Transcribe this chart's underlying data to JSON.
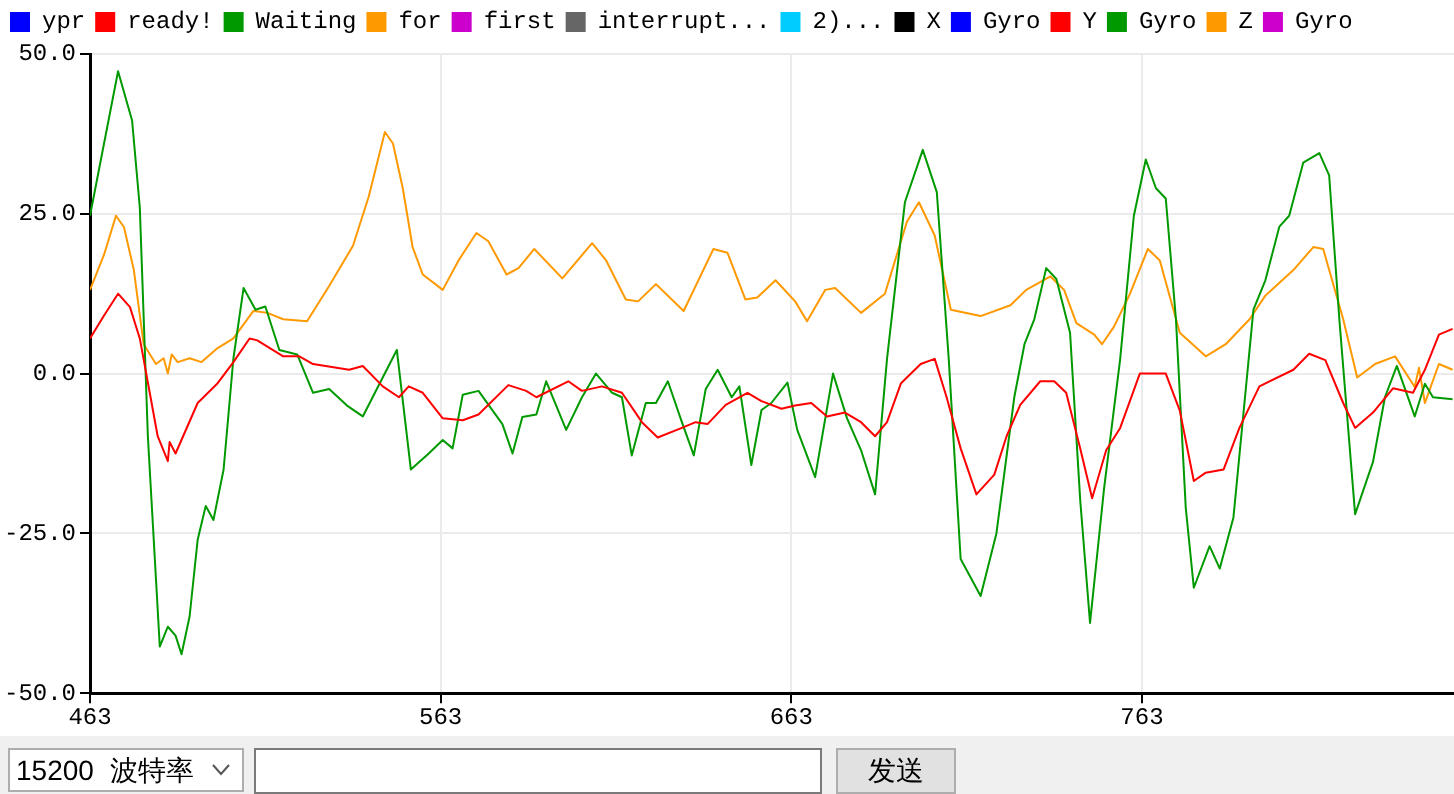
{
  "chart_data": {
    "type": "line",
    "xlim": [
      463,
      852
    ],
    "xticks": [
      463,
      563,
      663,
      763
    ],
    "ylim": [
      -50,
      50
    ],
    "yticks": [
      {
        "value": -50,
        "label": "-50.0"
      },
      {
        "value": -25,
        "label": "-25.0"
      },
      {
        "value": 0,
        "label": "0.0"
      },
      {
        "value": 25,
        "label": "25.0"
      },
      {
        "value": 50,
        "label": "50.0"
      }
    ],
    "grid": true,
    "legend": "top left",
    "marker": "none",
    "line_style": "solid",
    "annotations": [
      "15200",
      "波特率",
      "发送"
    ],
    "series": [
      {
        "name": "ypr",
        "color": "#0000ff"
      },
      {
        "name": "ready!",
        "color": "#ff0000",
        "x": [
          463,
          467,
          471,
          474.4,
          477.2,
          482.3,
          485.2,
          485.7,
          487.4,
          493.7,
          499.4,
          503.9,
          508.5,
          510.7,
          518.1,
          522.7,
          526.6,
          536.9,
          540.8,
          546.5,
          551.1,
          553.9,
          557.9,
          563.6,
          569.3,
          573.8,
          582.3,
          587.4,
          590.3,
          599.4,
          603.3,
          609,
          614.7,
          620.4,
          624.9,
          631.8,
          635.7,
          639.1,
          644.3,
          650.5,
          654.5,
          660.2,
          664.1,
          668.7,
          673.2,
          678.3,
          682.9,
          686.9,
          690.3,
          694.3,
          699.9,
          703.9,
          707.3,
          711.3,
          715.8,
          720.9,
          724.4,
          728.3,
          734,
          738,
          741.4,
          745.4,
          748.8,
          752.8,
          756.8,
          762.4,
          769.8,
          773.8,
          777.8,
          781.2,
          786.3,
          790.8,
          796.5,
          806.2,
          810.7,
          815.3,
          820.4,
          823.8,
          828.9,
          834.6,
          840.3,
          843.7,
          847.7,
          851.6
        ],
        "values": [
          5.5,
          9.1,
          12.5,
          10.4,
          5.5,
          -9.8,
          -13.7,
          -10.7,
          -12.5,
          -4.6,
          -1.5,
          1.8,
          5.5,
          5.2,
          2.7,
          2.7,
          1.5,
          0.6,
          1.2,
          -2,
          -3.7,
          -2,
          -3,
          -7,
          -7.3,
          -6.4,
          -1.8,
          -2.7,
          -3.7,
          -1.2,
          -2.7,
          -2,
          -3,
          -7.6,
          -10,
          -8.5,
          -7.6,
          -7.9,
          -4.9,
          -3,
          -4.3,
          -5.5,
          -5,
          -4.6,
          -6.7,
          -6.1,
          -7.6,
          -9.8,
          -7.6,
          -1.5,
          1.5,
          2.3,
          -3.7,
          -11.7,
          -18.9,
          -15.8,
          -9.8,
          -4.9,
          -1.2,
          -1.2,
          -3,
          -11.7,
          -19.5,
          -12,
          -8.5,
          0,
          0,
          -5.8,
          -16.8,
          -15.5,
          -15,
          -8.5,
          -2,
          0.6,
          3.1,
          2.1,
          -4.6,
          -8.5,
          -6.1,
          -2.3,
          -3,
          0.6,
          6.1,
          7
        ]
      },
      {
        "name": "Waiting",
        "color": "#009900",
        "x": [
          463,
          471,
          475,
          477.2,
          479.5,
          482.9,
          485.2,
          487.4,
          489.1,
          491.4,
          493.7,
          496,
          498.2,
          501.1,
          503.9,
          506.8,
          510.2,
          513,
          517,
          522.1,
          526.6,
          531.2,
          536.3,
          540.8,
          544.8,
          550.5,
          554.5,
          559.6,
          563.6,
          566.4,
          569.3,
          573.8,
          580.6,
          583.5,
          586.3,
          590.3,
          593.1,
          598.8,
          603.3,
          607.3,
          611.9,
          614.7,
          617.5,
          621.5,
          624.4,
          627.8,
          631.8,
          635.2,
          638.6,
          642,
          646,
          648.2,
          651.6,
          654.5,
          657.3,
          661.9,
          664.7,
          669.8,
          674.9,
          678.9,
          682.9,
          686.9,
          690.3,
          695.4,
          700.5,
          704.5,
          707.9,
          711.3,
          717,
          721.5,
          726.6,
          729.5,
          732.3,
          735.7,
          738.6,
          742.5,
          745.4,
          748.2,
          752.2,
          756.8,
          760.7,
          764.1,
          767,
          769.8,
          772.7,
          775.5,
          777.8,
          782.3,
          785.2,
          789.1,
          794.8,
          798.2,
          802.2,
          805,
          809,
          813.6,
          816.4,
          819.3,
          823.8,
          828.9,
          832.3,
          835.7,
          840.8,
          843.7,
          846,
          851.6
        ],
        "values": [
          24.7,
          47.3,
          39.6,
          26,
          -9.8,
          -42.7,
          -39.6,
          -41,
          -43.9,
          -38,
          -26,
          -20.7,
          -22.9,
          -15,
          2.4,
          13.4,
          10,
          10.5,
          3.7,
          3,
          -3,
          -2.4,
          -5,
          -6.7,
          -2.4,
          3.7,
          -15,
          -12.5,
          -10.4,
          -11.7,
          -3.3,
          -2.7,
          -7.9,
          -12.5,
          -6.8,
          -6.4,
          -1.2,
          -8.8,
          -3.7,
          0,
          -3,
          -3.7,
          -12.8,
          -4.6,
          -4.6,
          -1.2,
          -7.6,
          -12.8,
          -2.4,
          0.6,
          -3.7,
          -2,
          -14.3,
          -5.7,
          -4.6,
          -1.4,
          -8.8,
          -16.2,
          0,
          -7,
          -12,
          -18.9,
          2.3,
          26.8,
          35,
          28.4,
          2.3,
          -29,
          -34.8,
          -25,
          -3.7,
          4.6,
          8.5,
          16.5,
          14.8,
          6.4,
          -19.8,
          -39,
          -18,
          2.3,
          24.7,
          33.5,
          29,
          27.4,
          8.5,
          -21,
          -33.5,
          -27,
          -30.5,
          -22.5,
          10,
          14.6,
          23,
          24.7,
          33,
          34.5,
          31,
          8.5,
          -22,
          -13.8,
          -3.7,
          1.2,
          -6.7,
          -1.6,
          -3.7,
          -4
        ]
      },
      {
        "name": "for",
        "color": "#ff9900",
        "x": [
          463,
          467,
          470.4,
          472.7,
          475.5,
          478.3,
          481.8,
          484,
          485.2,
          486.3,
          488,
          491.4,
          494.8,
          499.4,
          503.9,
          509.6,
          513.6,
          518.1,
          524.9,
          531.2,
          538,
          542.5,
          547.1,
          549.4,
          552.2,
          555,
          557.9,
          563.6,
          568.1,
          573.2,
          576.6,
          581.8,
          585.2,
          589.7,
          597.7,
          606.2,
          610.2,
          615.8,
          619.3,
          624.4,
          632.3,
          640.8,
          644.8,
          649.9,
          653.3,
          658.5,
          664.1,
          667.5,
          672.7,
          675.5,
          682.9,
          689.7,
          696,
          699.4,
          703.9,
          708.5,
          717,
          725.5,
          730,
          736.9,
          740.8,
          744.3,
          749.4,
          751.6,
          755,
          759.6,
          764.7,
          768.1,
          773.8,
          781.2,
          786.9,
          793.7,
          798.2,
          806.2,
          811.9,
          814.7,
          820.4,
          824.4,
          829.5,
          835.2,
          840.8,
          842,
          843.7,
          847.7,
          851.6
        ],
        "values": [
          13.1,
          18.6,
          24.7,
          22.9,
          16.2,
          4.6,
          1.5,
          2.4,
          0,
          3,
          1.8,
          2.4,
          1.8,
          4,
          5.5,
          9.8,
          9.5,
          8.5,
          8.2,
          13.7,
          20,
          27.7,
          37.8,
          36,
          29,
          19.8,
          15.5,
          13.1,
          17.7,
          22,
          20.7,
          15.5,
          16.5,
          19.5,
          14.9,
          20.4,
          17.7,
          11.6,
          11.3,
          14,
          9.8,
          19.5,
          18.9,
          11.6,
          11.9,
          14.6,
          11.3,
          8.2,
          13.1,
          13.4,
          9.5,
          12.5,
          23.8,
          26.8,
          21.6,
          10,
          9,
          10.7,
          13.1,
          15.2,
          13.1,
          7.9,
          6.1,
          4.6,
          7.3,
          12.5,
          19.5,
          17.7,
          6.4,
          2.7,
          4.6,
          8.5,
          12.2,
          16.2,
          19.8,
          19.5,
          8.5,
          -0.6,
          1.5,
          2.7,
          -2.1,
          0.9,
          -4.6,
          1.5,
          0.6
        ]
      },
      {
        "name": "first",
        "color": "#cc00cc"
      },
      {
        "name": "interrupt...",
        "color": "#666666"
      },
      {
        "name": "2)...",
        "color": "#00ccff"
      },
      {
        "name": "X",
        "color": "#000000"
      },
      {
        "name": "Gyro",
        "color": "#0000ff"
      },
      {
        "name": "Y",
        "color": "#ff0000"
      },
      {
        "name": "Gyro",
        "color": "#009900"
      },
      {
        "name": "Z",
        "color": "#ff9900"
      },
      {
        "name": "Gyro",
        "color": "#cc00cc"
      }
    ]
  }
}
